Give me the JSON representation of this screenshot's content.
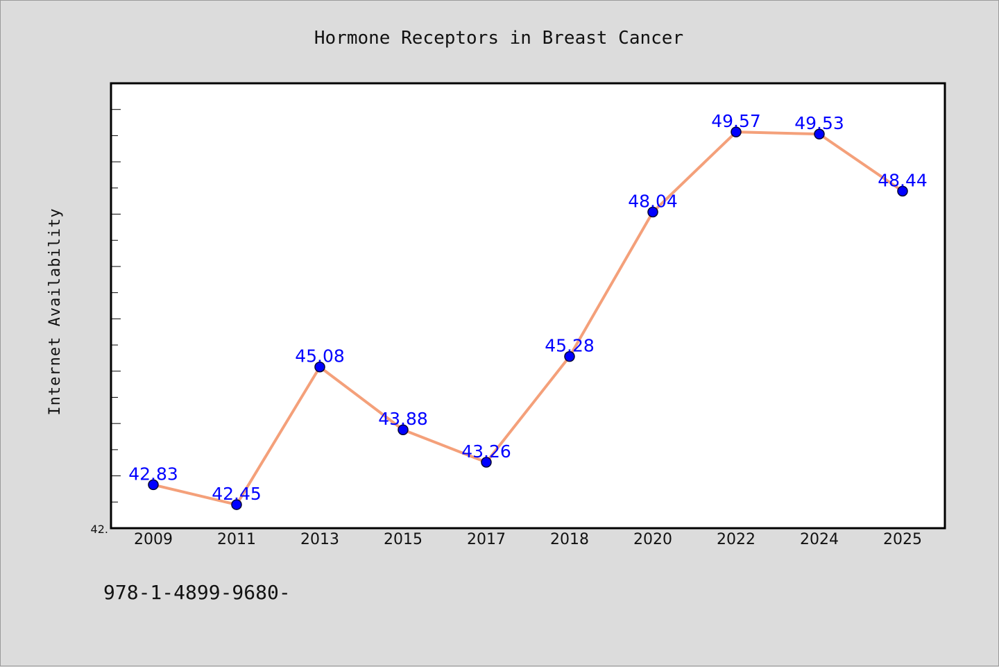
{
  "chart_data": {
    "type": "line",
    "title": "Hormone Receptors in Breast Cancer",
    "xlabel": "",
    "ylabel": "Internet Availability",
    "categories": [
      "2009",
      "2011",
      "2013",
      "2015",
      "2017",
      "2018",
      "2020",
      "2022",
      "2024",
      "2025"
    ],
    "values": [
      42.83,
      42.45,
      45.08,
      43.88,
      43.26,
      45.28,
      48.04,
      49.57,
      49.53,
      48.44
    ],
    "data_labels": [
      "42.83",
      "42.45",
      "45.08",
      "43.88",
      "43.26",
      "45.28",
      "48.04",
      "49.57",
      "49.53",
      "48.44"
    ],
    "y_tick_label": "42.",
    "ylim": [
      42.0,
      50.5
    ],
    "grid": false,
    "legend": "none",
    "colors": {
      "line": "#f4a07a",
      "marker": "#0000ff",
      "marker_edge": "#000033",
      "labels": "#0000ff",
      "background": "#dcdcdc",
      "plot_background": "#ffffff"
    }
  },
  "footer": {
    "text": "978-1-4899-9680-"
  }
}
